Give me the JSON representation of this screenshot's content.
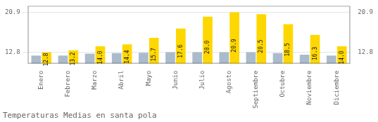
{
  "chart_data": {
    "type": "bar",
    "title": "Temperaturas Medias en santa pola",
    "categories": [
      "Enero",
      "Febrero",
      "Marzo",
      "Abril",
      "Mayo",
      "Junio",
      "Julio",
      "Agosto",
      "Septiembre",
      "Octubre",
      "Noviembre",
      "Diciembre"
    ],
    "series": [
      {
        "color": "#AABBCC",
        "values": [
          12.1,
          12.1,
          12.5,
          12.6,
          12.7,
          12.8,
          12.8,
          12.8,
          12.8,
          12.6,
          12.3,
          12.1
        ]
      },
      {
        "color": "#FFD700",
        "values": [
          12.8,
          13.2,
          14.0,
          14.4,
          15.7,
          17.6,
          20.0,
          20.9,
          20.5,
          18.5,
          16.3,
          14.0
        ],
        "data_labels": true,
        "value_labels": [
          "12.8",
          "13.2",
          "14.0",
          "14.4",
          "15.7",
          "17.6",
          "20.0",
          "20.9",
          "20.5",
          "18.5",
          "16.3",
          "14.0"
        ]
      }
    ],
    "ylim": [
      10.5,
      22.2
    ],
    "yticks": [
      12.8,
      20.9
    ],
    "y2lim": [
      10.5,
      22.2
    ],
    "y2ticks": [
      12.8,
      20.9
    ],
    "grid": true
  }
}
